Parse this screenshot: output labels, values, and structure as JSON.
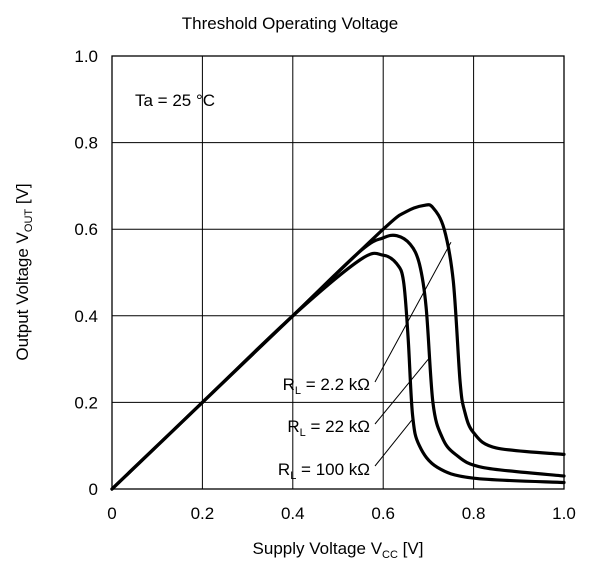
{
  "chart_data": {
    "type": "line",
    "title": "Threshold Operating Voltage",
    "xlabel": {
      "main": "Supply Voltage V",
      "sub": "CC",
      "unit": " [V]"
    },
    "ylabel": {
      "main": "Output Voltage V",
      "sub": "OUT",
      "unit": " [V]"
    },
    "xlim": [
      0,
      1.0
    ],
    "ylim": [
      0,
      1.0
    ],
    "xticks": [
      "0",
      "0.2",
      "0.4",
      "0.6",
      "0.8",
      "1.0"
    ],
    "yticks": [
      "0",
      "0.2",
      "0.4",
      "0.6",
      "0.8",
      "1.0"
    ],
    "grid": true,
    "annotation": "Ta = 25 °C",
    "series": [
      {
        "name": "R_L = 2.2 kΩ",
        "label": {
          "pre": "R",
          "sub": "L",
          "post": " = 2.2 kΩ"
        },
        "points": [
          [
            0,
            0
          ],
          [
            0.2,
            0.2
          ],
          [
            0.4,
            0.4
          ],
          [
            0.55,
            0.53
          ],
          [
            0.6,
            0.54
          ],
          [
            0.63,
            0.52
          ],
          [
            0.645,
            0.48
          ],
          [
            0.655,
            0.35
          ],
          [
            0.665,
            0.17
          ],
          [
            0.68,
            0.1
          ],
          [
            0.72,
            0.05
          ],
          [
            0.8,
            0.025
          ],
          [
            1.0,
            0.015
          ]
        ]
      },
      {
        "name": "R_L = 22 kΩ",
        "label": {
          "pre": "R",
          "sub": "L",
          "post": " = 22 kΩ"
        },
        "points": [
          [
            0,
            0
          ],
          [
            0.2,
            0.2
          ],
          [
            0.4,
            0.4
          ],
          [
            0.55,
            0.55
          ],
          [
            0.6,
            0.58
          ],
          [
            0.63,
            0.585
          ],
          [
            0.66,
            0.565
          ],
          [
            0.68,
            0.52
          ],
          [
            0.695,
            0.42
          ],
          [
            0.71,
            0.2
          ],
          [
            0.73,
            0.12
          ],
          [
            0.76,
            0.08
          ],
          [
            0.82,
            0.05
          ],
          [
            1.0,
            0.03
          ]
        ]
      },
      {
        "name": "R_L = 100 kΩ",
        "label": {
          "pre": "R",
          "sub": "L",
          "post": " = 100 kΩ"
        },
        "points": [
          [
            0,
            0
          ],
          [
            0.2,
            0.2
          ],
          [
            0.4,
            0.4
          ],
          [
            0.6,
            0.6
          ],
          [
            0.65,
            0.64
          ],
          [
            0.69,
            0.655
          ],
          [
            0.71,
            0.65
          ],
          [
            0.735,
            0.6
          ],
          [
            0.755,
            0.48
          ],
          [
            0.77,
            0.25
          ],
          [
            0.78,
            0.18
          ],
          [
            0.8,
            0.13
          ],
          [
            0.85,
            0.095
          ],
          [
            1.0,
            0.08
          ]
        ]
      }
    ]
  }
}
